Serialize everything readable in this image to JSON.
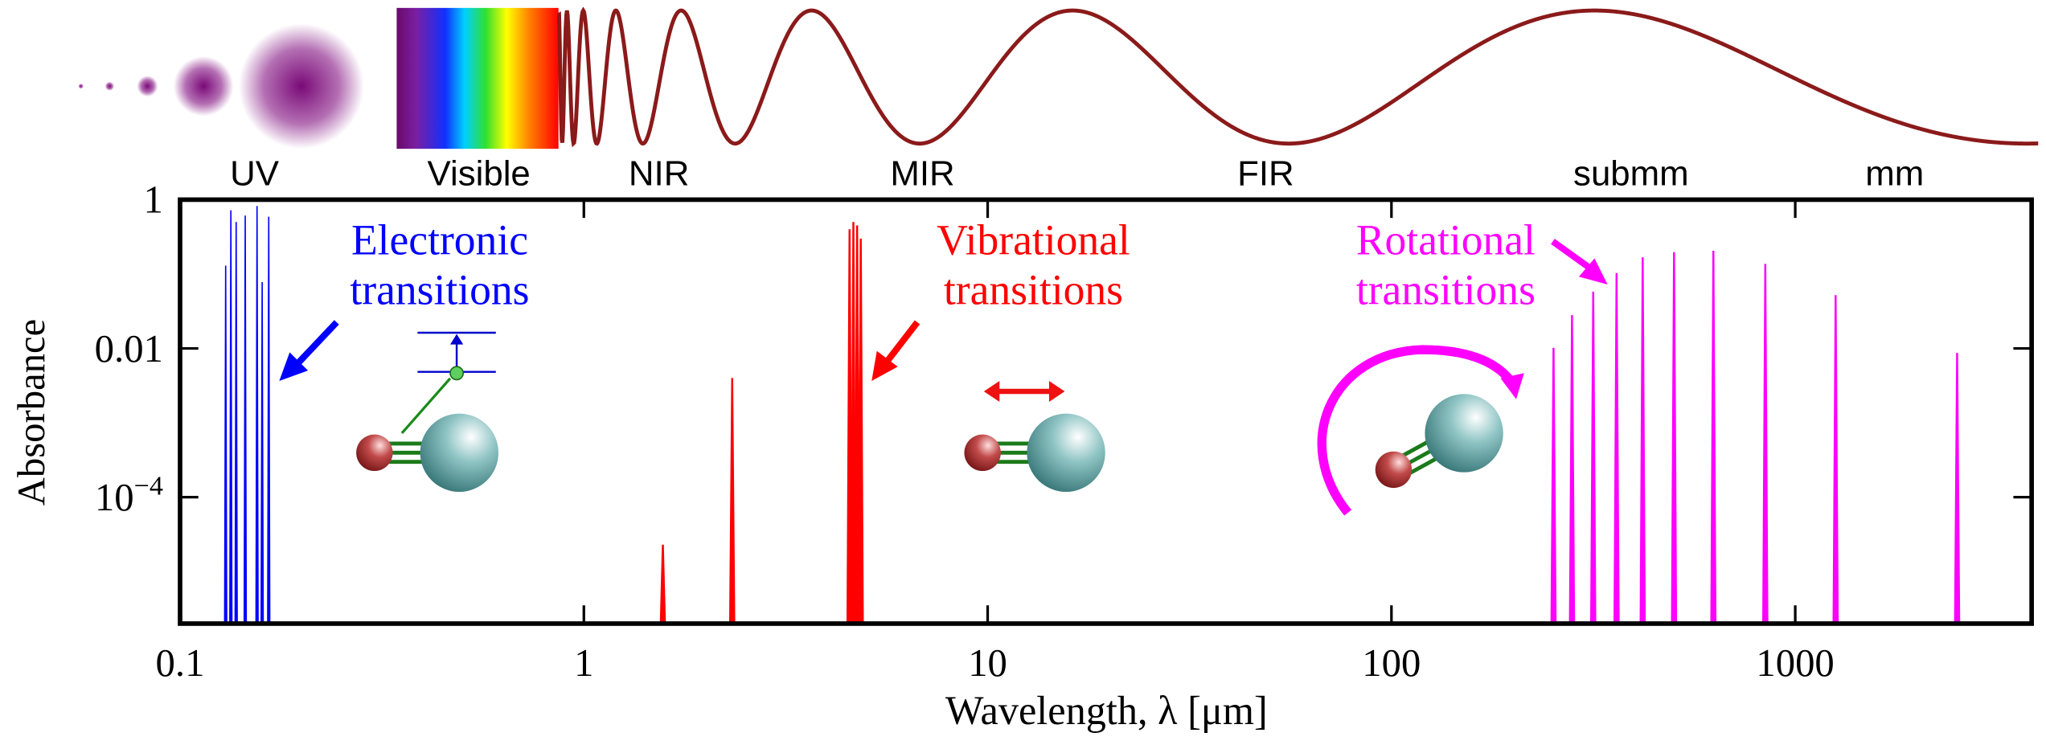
{
  "chart_data": {
    "type": "spectrum",
    "bands": [
      "UV",
      "Visible",
      "NIR",
      "MIR",
      "FIR",
      "submm",
      "mm"
    ],
    "x_label": "Wavelength, λ [μm]",
    "y_label": "Absorbance",
    "xscale": "log",
    "yscale": "log",
    "xlim": [
      0.1,
      3850
    ],
    "ylim": [
      2e-06,
      1
    ],
    "xticks": [
      0.1,
      1,
      10,
      100,
      1000
    ],
    "yticks": [
      1,
      0.01,
      {
        "value": 0.0001,
        "label": "10−4"
      }
    ],
    "series": [
      {
        "label_lines": [
          "Electronic",
          "transitions"
        ],
        "color": "#0000ff",
        "x": [
          0.1297,
          0.1336,
          0.1377,
          0.145,
          0.1551,
          0.1597,
          0.1658
        ],
        "values": [
          0.13,
          0.72,
          0.5,
          0.61,
          0.82,
          0.078,
          0.59
        ]
      },
      {
        "label_lines": [
          "Vibrational",
          "transitions"
        ],
        "color": "#ff0000",
        "x": [
          1.569,
          2.33,
          4.55,
          4.65,
          4.75,
          4.85
        ],
        "values": [
          2.3e-05,
          0.004,
          0.4,
          0.5,
          0.45,
          0.3
        ]
      },
      {
        "label_lines": [
          "Rotational",
          "transitions"
        ],
        "color": "#ff00ff",
        "x": [
          252,
          280,
          316,
          361,
          419,
          501,
          627,
          843,
          1259,
          2517
        ],
        "values": [
          0.0102,
          0.028,
          0.058,
          0.103,
          0.168,
          0.197,
          0.206,
          0.137,
          0.052,
          0.0087
        ]
      }
    ]
  }
}
